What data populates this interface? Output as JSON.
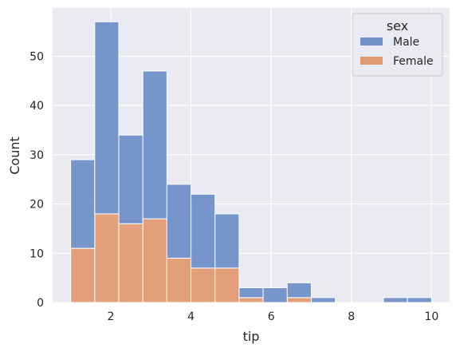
{
  "chart_data": {
    "type": "bar",
    "style": "stacked-histogram",
    "xlabel": "tip",
    "ylabel": "Count",
    "xlim": [
      0.55,
      10.45
    ],
    "ylim": [
      0,
      59.8
    ],
    "xticks": [
      2,
      4,
      6,
      8,
      10
    ],
    "yticks": [
      0,
      10,
      20,
      30,
      40,
      50
    ],
    "grid": true,
    "bin_edges": [
      1.0,
      1.6,
      2.2,
      2.8,
      3.4,
      4.0,
      4.6,
      5.2,
      5.8,
      6.4,
      7.0,
      7.6,
      8.2,
      8.8,
      9.4,
      10.0
    ],
    "legend": {
      "title": "sex",
      "placement": "top-right"
    },
    "series": [
      {
        "name": "Male",
        "color": "#7090c8",
        "values": [
          18,
          39,
          18,
          30,
          15,
          15,
          11,
          2,
          3,
          3,
          1,
          0,
          0,
          1,
          1
        ]
      },
      {
        "name": "Female",
        "color": "#e19b73",
        "values": [
          11,
          18,
          16,
          17,
          9,
          7,
          7,
          1,
          0,
          1,
          0,
          0,
          0,
          0,
          0
        ]
      }
    ],
    "totals": [
      29,
      57,
      34,
      47,
      24,
      22,
      18,
      3,
      3,
      4,
      1,
      0,
      0,
      1,
      1
    ]
  }
}
